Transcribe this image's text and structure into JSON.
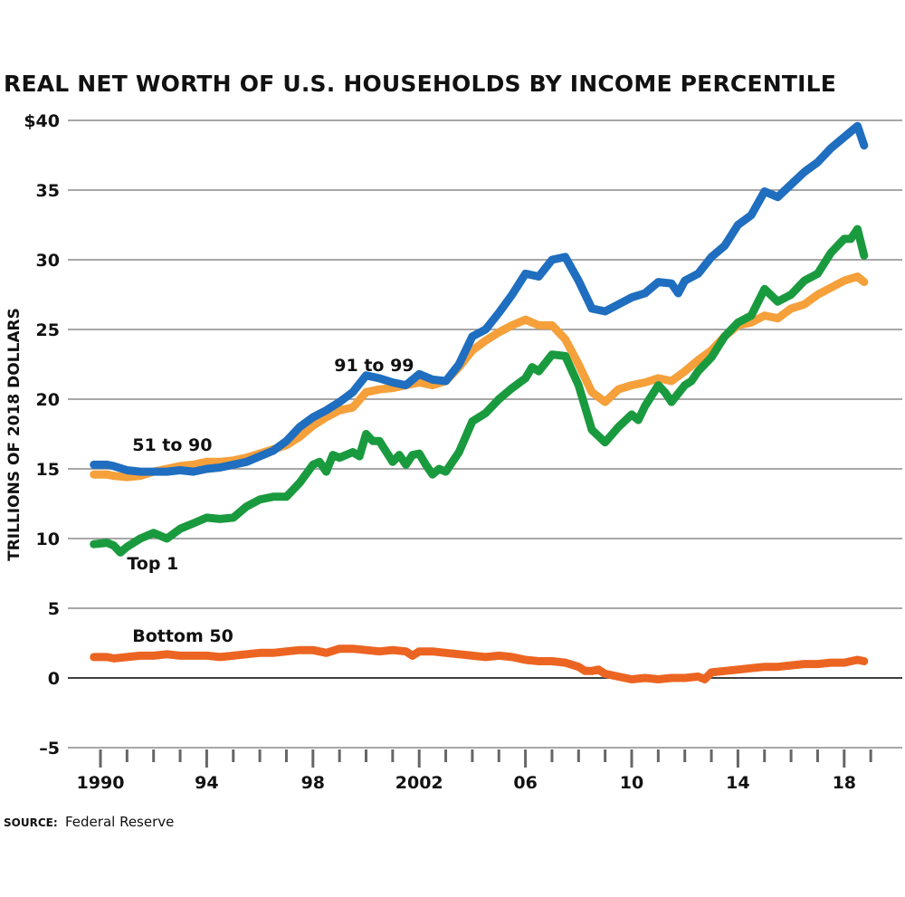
{
  "chart_data": {
    "type": "line",
    "title": "REAL NET WORTH OF U.S. HOUSEHOLDS BY INCOME PERCENTILE",
    "xlabel": "",
    "ylabel": "TRILLIONS OF 2018 DOLLARS",
    "ylim": [
      -5,
      40
    ],
    "xlim": [
      1989.5,
      2021.2
    ],
    "grid": true,
    "y_ticks": [
      {
        "value": 40,
        "label": "$40"
      },
      {
        "value": 35,
        "label": "35"
      },
      {
        "value": 30,
        "label": "30"
      },
      {
        "value": 25,
        "label": "25"
      },
      {
        "value": 20,
        "label": "20"
      },
      {
        "value": 15,
        "label": "15"
      },
      {
        "value": 10,
        "label": "10"
      },
      {
        "value": 5,
        "label": "5"
      },
      {
        "value": 0,
        "label": "0"
      },
      {
        "value": -5,
        "label": "–5"
      }
    ],
    "x_ticks": [
      {
        "value": 1990,
        "label": "1990"
      },
      {
        "value": 1994,
        "label": "94"
      },
      {
        "value": 1998,
        "label": "98"
      },
      {
        "value": 2002,
        "label": "2002"
      },
      {
        "value": 2006,
        "label": "06"
      },
      {
        "value": 2010,
        "label": "10"
      },
      {
        "value": 2014,
        "label": "14"
      },
      {
        "value": 2018,
        "label": "18"
      }
    ],
    "minor_x_ticks_years": [
      1991,
      1992,
      1993,
      1995,
      1996,
      1997,
      1999,
      2000,
      2001,
      2003,
      2004,
      2005,
      2007,
      2008,
      2009,
      2011,
      2012,
      2013,
      2015,
      2016,
      2017,
      2019
    ],
    "series": [
      {
        "name": "91 to 99",
        "color": "#1f6ebf",
        "label_pos": {
          "year": 1998.8,
          "value": 22.0
        },
        "x": [
          1989.75,
          1990.25,
          1990.5,
          1991,
          1991.5,
          1992,
          1992.5,
          1993,
          1993.5,
          1994,
          1994.5,
          1995,
          1995.5,
          1996,
          1996.5,
          1997,
          1997.5,
          1998,
          1998.5,
          1999,
          1999.5,
          2000,
          2000.5,
          2001,
          2001.5,
          2002,
          2002.5,
          2003,
          2003.5,
          2004,
          2004.5,
          2005,
          2005.5,
          2006,
          2006.5,
          2007,
          2007.5,
          2008,
          2008.5,
          2009,
          2009.5,
          2010,
          2010.5,
          2011,
          2011.5,
          2011.75,
          2012,
          2012.5,
          2013,
          2013.5,
          2014,
          2014.5,
          2015,
          2015.5,
          2016,
          2016.5,
          2017,
          2017.5,
          2018,
          2018.5,
          2018.75
        ],
        "values": [
          15.3,
          15.3,
          15.2,
          14.9,
          14.8,
          14.8,
          14.8,
          14.9,
          14.8,
          15.0,
          15.1,
          15.3,
          15.5,
          15.9,
          16.3,
          17.0,
          18.0,
          18.7,
          19.2,
          19.8,
          20.5,
          21.7,
          21.5,
          21.2,
          21.0,
          21.8,
          21.4,
          21.3,
          22.5,
          24.5,
          25.0,
          26.2,
          27.5,
          29.0,
          28.8,
          30.0,
          30.2,
          28.5,
          26.5,
          26.3,
          26.8,
          27.3,
          27.6,
          28.4,
          28.3,
          27.6,
          28.5,
          29.0,
          30.2,
          31.0,
          32.5,
          33.2,
          34.9,
          34.5,
          35.4,
          36.3,
          37.0,
          38.0,
          38.8,
          39.6,
          38.2
        ]
      },
      {
        "name": "51 to 90",
        "color": "#f5a03a",
        "label_pos": {
          "year": 1991.2,
          "value": 16.3
        },
        "x": [
          1989.75,
          1990.25,
          1990.5,
          1991,
          1991.5,
          1992,
          1992.5,
          1993,
          1993.5,
          1994,
          1994.5,
          1995,
          1995.5,
          1996,
          1996.5,
          1997,
          1997.5,
          1998,
          1998.5,
          1999,
          1999.5,
          2000,
          2000.5,
          2001,
          2001.5,
          2002,
          2002.5,
          2003,
          2003.5,
          2004,
          2004.5,
          2005,
          2005.5,
          2006,
          2006.5,
          2007,
          2007.5,
          2008,
          2008.5,
          2009,
          2009.5,
          2010,
          2010.5,
          2011,
          2011.5,
          2012,
          2012.5,
          2013,
          2013.5,
          2014,
          2014.5,
          2015,
          2015.5,
          2016,
          2016.5,
          2017,
          2017.5,
          2018,
          2018.5,
          2018.75
        ],
        "values": [
          14.6,
          14.6,
          14.5,
          14.4,
          14.5,
          14.8,
          15.0,
          15.2,
          15.3,
          15.5,
          15.5,
          15.6,
          15.8,
          16.1,
          16.4,
          16.7,
          17.3,
          18.1,
          18.7,
          19.2,
          19.4,
          20.5,
          20.7,
          20.8,
          21.0,
          21.2,
          21.0,
          21.3,
          22.3,
          23.5,
          24.2,
          24.8,
          25.3,
          25.7,
          25.3,
          25.3,
          24.3,
          22.5,
          20.5,
          19.8,
          20.7,
          21.0,
          21.2,
          21.5,
          21.3,
          22.0,
          22.8,
          23.5,
          24.5,
          25.3,
          25.5,
          26.0,
          25.8,
          26.5,
          26.8,
          27.5,
          28.0,
          28.5,
          28.8,
          28.4
        ]
      },
      {
        "name": "Top 1",
        "color": "#1a9a3e",
        "label_pos": {
          "year": 1991.0,
          "value": 7.8
        },
        "x": [
          1989.75,
          1990.25,
          1990.5,
          1990.75,
          1991,
          1991.5,
          1992,
          1992.5,
          1993,
          1993.5,
          1994,
          1994.5,
          1995,
          1995.5,
          1996,
          1996.5,
          1997,
          1997.5,
          1998,
          1998.25,
          1998.5,
          1998.75,
          1999,
          1999.5,
          1999.75,
          2000,
          2000.25,
          2000.5,
          2001,
          2001.25,
          2001.5,
          2001.75,
          2002,
          2002.25,
          2002.5,
          2002.75,
          2003,
          2003.5,
          2004,
          2004.5,
          2005,
          2005.5,
          2006,
          2006.25,
          2006.5,
          2007,
          2007.5,
          2008,
          2008.5,
          2009,
          2009.5,
          2010,
          2010.25,
          2010.5,
          2011,
          2011.25,
          2011.5,
          2012,
          2012.25,
          2012.5,
          2013,
          2013.5,
          2014,
          2014.5,
          2015,
          2015.5,
          2016,
          2016.5,
          2017,
          2017.5,
          2018,
          2018.25,
          2018.5,
          2018.75
        ],
        "values": [
          9.6,
          9.7,
          9.5,
          9.0,
          9.4,
          10.0,
          10.4,
          10.0,
          10.7,
          11.1,
          11.5,
          11.4,
          11.5,
          12.3,
          12.8,
          13.0,
          13.0,
          14.0,
          15.3,
          15.5,
          14.8,
          16.0,
          15.8,
          16.2,
          15.9,
          17.5,
          17.0,
          17.0,
          15.5,
          16.0,
          15.3,
          16.0,
          16.1,
          15.3,
          14.6,
          15.0,
          14.8,
          16.2,
          18.4,
          19.0,
          20.0,
          20.8,
          21.5,
          22.3,
          22.0,
          23.2,
          23.1,
          21.0,
          17.8,
          16.9,
          18.0,
          18.9,
          18.5,
          19.5,
          21.0,
          20.5,
          19.8,
          21.0,
          21.3,
          22.0,
          23.0,
          24.5,
          25.5,
          26.0,
          27.9,
          27.0,
          27.5,
          28.5,
          29.0,
          30.5,
          31.5,
          31.5,
          32.2,
          30.3
        ]
      },
      {
        "name": "Bottom 50",
        "color": "#ec6422",
        "label_pos": {
          "year": 1991.2,
          "value": 2.6
        },
        "x": [
          1989.75,
          1990.25,
          1990.5,
          1991,
          1991.5,
          1992,
          1992.5,
          1993,
          1993.5,
          1994,
          1994.5,
          1995,
          1995.5,
          1996,
          1996.5,
          1997,
          1997.5,
          1998,
          1998.5,
          1999,
          1999.5,
          2000,
          2000.5,
          2001,
          2001.5,
          2001.75,
          2002,
          2002.5,
          2003,
          2003.5,
          2004,
          2004.5,
          2005,
          2005.5,
          2006,
          2006.5,
          2007,
          2007.5,
          2008,
          2008.25,
          2008.5,
          2008.75,
          2009,
          2009.5,
          2010,
          2010.5,
          2011,
          2011.5,
          2012,
          2012.5,
          2012.75,
          2013,
          2013.5,
          2014,
          2014.5,
          2015,
          2015.5,
          2016,
          2016.5,
          2017,
          2017.5,
          2018,
          2018.5,
          2018.75
        ],
        "values": [
          1.5,
          1.5,
          1.4,
          1.5,
          1.6,
          1.6,
          1.7,
          1.6,
          1.6,
          1.6,
          1.5,
          1.6,
          1.7,
          1.8,
          1.8,
          1.9,
          2.0,
          2.0,
          1.8,
          2.1,
          2.1,
          2.0,
          1.9,
          2.0,
          1.9,
          1.6,
          1.9,
          1.9,
          1.8,
          1.7,
          1.6,
          1.5,
          1.6,
          1.5,
          1.3,
          1.2,
          1.2,
          1.1,
          0.8,
          0.5,
          0.5,
          0.6,
          0.3,
          0.1,
          -0.1,
          0.0,
          -0.1,
          0.0,
          0.0,
          0.1,
          -0.1,
          0.4,
          0.5,
          0.6,
          0.7,
          0.8,
          0.8,
          0.9,
          1.0,
          1.0,
          1.1,
          1.1,
          1.3,
          1.2
        ]
      }
    ]
  },
  "source": {
    "key": "SOURCE:",
    "value": "Federal Reserve"
  }
}
